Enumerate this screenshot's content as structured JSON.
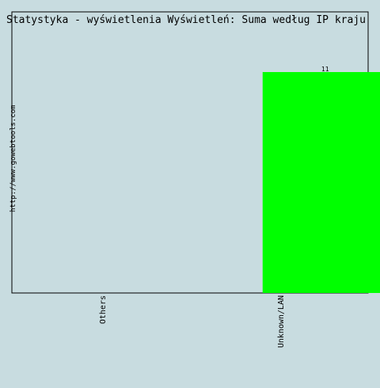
{
  "chart_data": {
    "type": "bar",
    "title": "Statystyka - wyświetlenia Wyświetleń: Suma według IP kraju",
    "side_label": "http://www.gowebtools.com",
    "categories": [
      "Others",
      "Unknown/LAN"
    ],
    "values": [
      0,
      11
    ],
    "value_labels": [
      "",
      "11"
    ],
    "ylim": [
      0,
      11
    ],
    "grid": false,
    "colors": {
      "background": "#c8dce0",
      "plot_background": "#c8dce0",
      "bar": "#00ff00",
      "axis": "#000000"
    }
  }
}
